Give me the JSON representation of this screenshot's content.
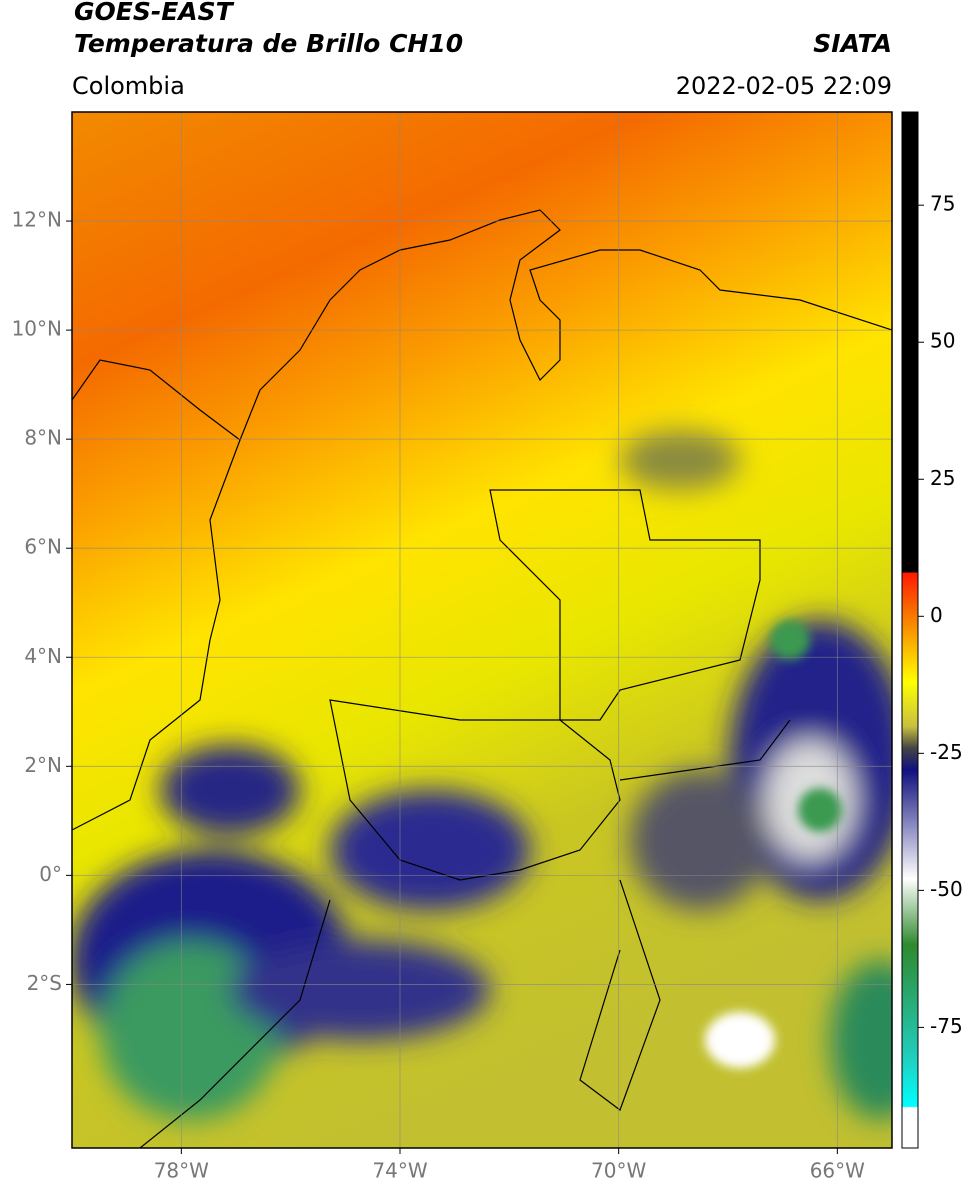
{
  "header": {
    "title": "GOES-EAST",
    "subtitle": "Temperatura de Brillo CH10",
    "source": "SIATA",
    "region": "Colombia",
    "timestamp": "2022-02-05 22:09"
  },
  "map": {
    "xlim": [
      -80,
      -65
    ],
    "ylim": [
      -5,
      14
    ],
    "xticks": [
      {
        "value": -78,
        "label": "78°W"
      },
      {
        "value": -74,
        "label": "74°W"
      },
      {
        "value": -70,
        "label": "70°W"
      },
      {
        "value": -66,
        "label": "66°W"
      }
    ],
    "yticks": [
      {
        "value": 12,
        "label": "12°N"
      },
      {
        "value": 10,
        "label": "10°N"
      },
      {
        "value": 8,
        "label": "8°N"
      },
      {
        "value": 6,
        "label": "6°N"
      },
      {
        "value": 4,
        "label": "4°N"
      },
      {
        "value": 2,
        "label": "2°N"
      },
      {
        "value": 0,
        "label": "0°"
      },
      {
        "value": -2,
        "label": "2°S"
      }
    ]
  },
  "colorbar": {
    "lim": [
      -97,
      92
    ],
    "ticks": [
      75,
      50,
      25,
      0,
      -25,
      -50,
      -75
    ]
  }
}
